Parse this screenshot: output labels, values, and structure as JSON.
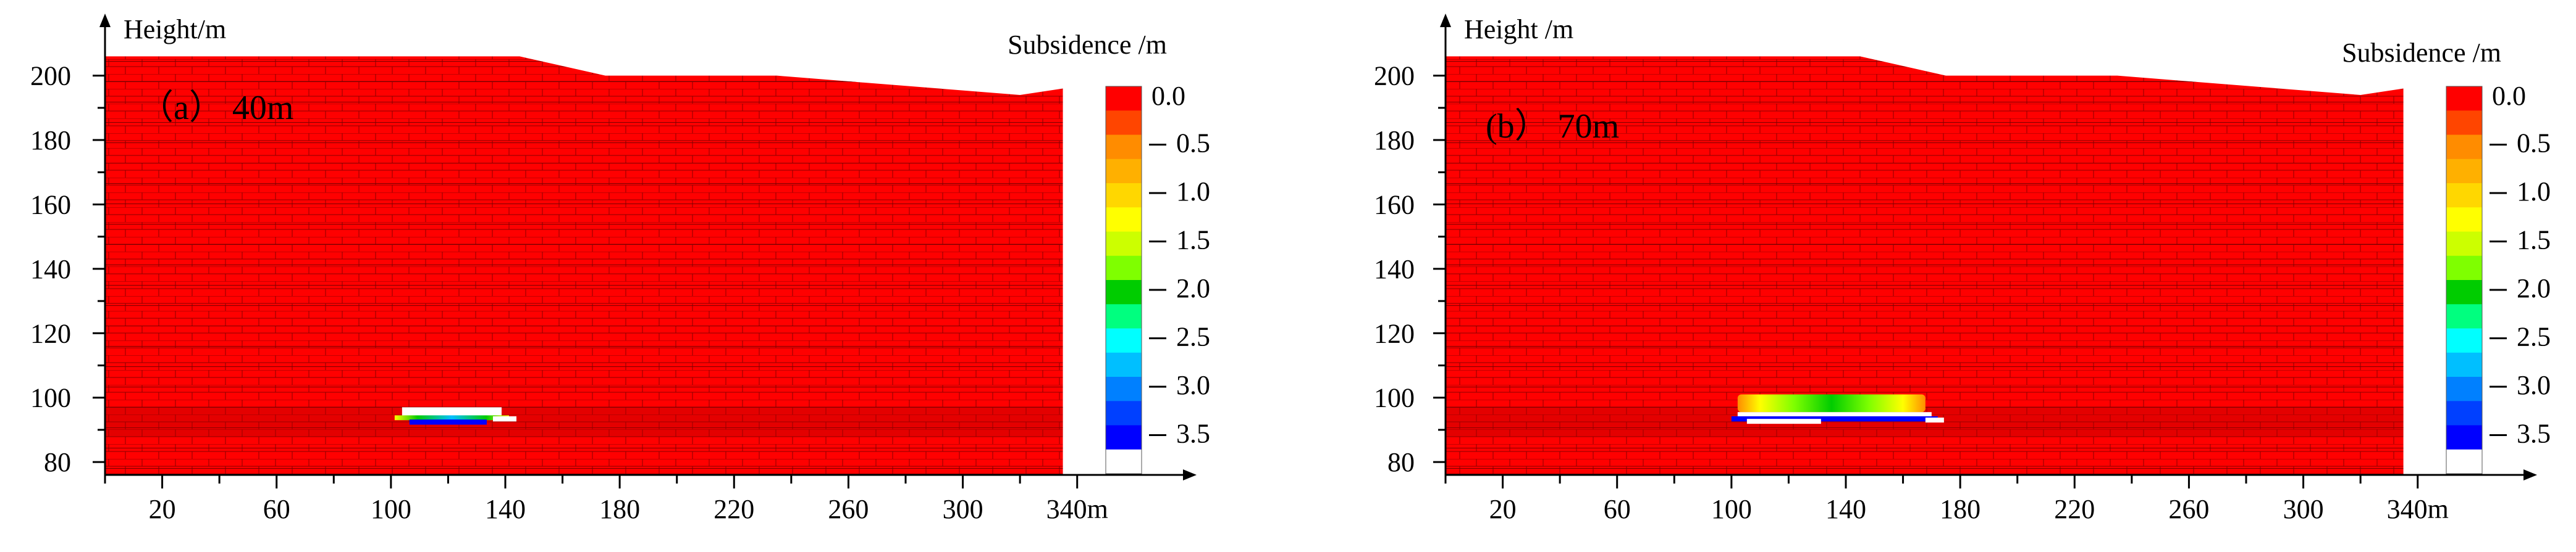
{
  "figure": {
    "colors": {
      "rock": "#ff0000",
      "block_line": "#8b0000",
      "axis": "#000000",
      "void": "#ffffff",
      "colorbar_steps": [
        "#ff0000",
        "#ff4500",
        "#ff8c00",
        "#ffb000",
        "#ffd700",
        "#ffff00",
        "#ccff00",
        "#7fff00",
        "#00cc00",
        "#00ff7f",
        "#00ffff",
        "#00bfff",
        "#0080ff",
        "#0040ff",
        "#0000ff",
        "#ffffff"
      ]
    }
  },
  "chart_data": [
    {
      "type": "heatmap",
      "panel_label": "（a） 40m",
      "ylabel": "Height/m",
      "colorbar_title": "Subsidence /m",
      "x_ticks": [
        "20",
        "60",
        "100",
        "140",
        "180",
        "220",
        "260",
        "300",
        "340m"
      ],
      "x_tick_values": [
        20,
        60,
        100,
        140,
        180,
        220,
        260,
        300,
        340
      ],
      "y_ticks": [
        "80",
        "100",
        "120",
        "140",
        "160",
        "180",
        "200"
      ],
      "y_tick_values": [
        80,
        100,
        120,
        140,
        160,
        180,
        200
      ],
      "xlim": [
        0,
        350
      ],
      "ylim": [
        76,
        212
      ],
      "colorbar_ticks": [
        "0.0",
        "0.5",
        "1.0",
        "1.5",
        "2.0",
        "2.5",
        "3.0",
        "3.5"
      ],
      "colorbar_values": [
        0.0,
        0.5,
        1.0,
        1.5,
        2.0,
        2.5,
        3.0,
        3.5
      ],
      "colorbar_range": [
        0,
        4
      ],
      "surface_profile": [
        [
          0,
          206
        ],
        [
          145,
          206
        ],
        [
          175,
          200
        ],
        [
          235,
          200
        ],
        [
          320,
          194
        ],
        [
          335,
          196
        ]
      ],
      "goaf": {
        "x_start": 100,
        "x_end": 140,
        "floor": 93,
        "max_subsidence": 3.5
      }
    },
    {
      "type": "heatmap",
      "panel_label": "(b） 70m",
      "ylabel": "Height /m",
      "colorbar_title": "Subsidence /m",
      "x_ticks": [
        "20",
        "60",
        "100",
        "140",
        "180",
        "220",
        "260",
        "300",
        "340m"
      ],
      "x_tick_values": [
        20,
        60,
        100,
        140,
        180,
        220,
        260,
        300,
        340
      ],
      "y_ticks": [
        "80",
        "100",
        "120",
        "140",
        "160",
        "180",
        "200"
      ],
      "y_tick_values": [
        80,
        100,
        120,
        140,
        160,
        180,
        200
      ],
      "xlim": [
        0,
        350
      ],
      "ylim": [
        76,
        212
      ],
      "colorbar_ticks": [
        "0.0",
        "0.5",
        "1.0",
        "1.5",
        "2.0",
        "2.5",
        "3.0",
        "3.5"
      ],
      "colorbar_values": [
        0.0,
        0.5,
        1.0,
        1.5,
        2.0,
        2.5,
        3.0,
        3.5
      ],
      "colorbar_range": [
        0,
        4
      ],
      "surface_profile": [
        [
          0,
          206
        ],
        [
          145,
          206
        ],
        [
          175,
          200
        ],
        [
          235,
          200
        ],
        [
          320,
          194
        ],
        [
          335,
          196
        ]
      ],
      "goaf": {
        "x_start": 100,
        "x_end": 170,
        "floor": 93,
        "max_subsidence": 3.5
      }
    }
  ]
}
